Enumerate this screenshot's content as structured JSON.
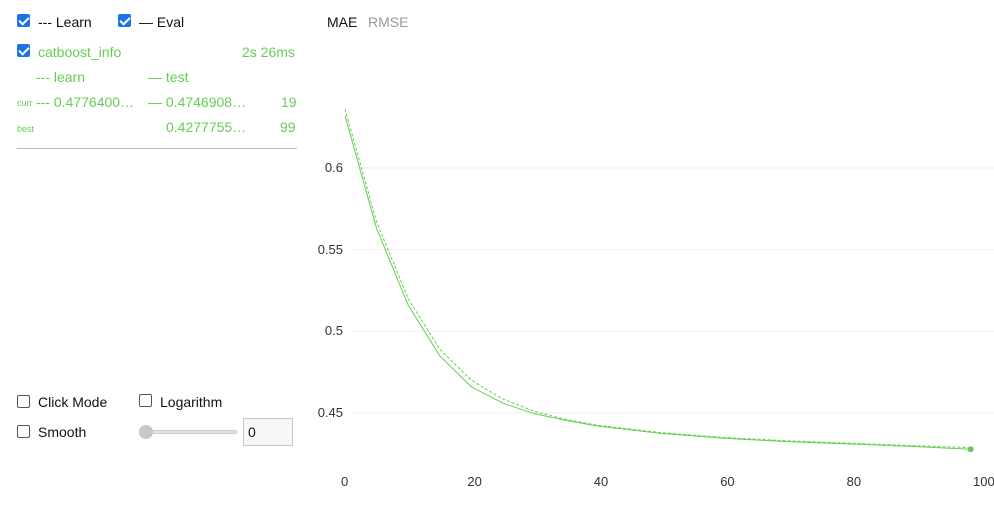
{
  "legend": {
    "learn_label": "--- Learn",
    "eval_label": "— Eval",
    "learn_checked": true,
    "eval_checked": true
  },
  "run": {
    "name": "catboost_info",
    "time": "2s 26ms",
    "checked": true,
    "learn_header": "--- learn",
    "test_header": "— test",
    "curr_label": "curr",
    "curr_learn": "--- 0.4776400…",
    "curr_test": "— 0.4746908…",
    "curr_iter": "19",
    "best_label": "best",
    "best_test": "0.4277755…",
    "best_iter": "99"
  },
  "controls": {
    "click_mode": "Click Mode",
    "logarithm": "Logarithm",
    "smooth": "Smooth",
    "smooth_value": "0",
    "smooth_level": 0
  },
  "tabs": {
    "mae": "MAE",
    "rmse": "RMSE",
    "active": "MAE"
  },
  "colors": {
    "series": "#66cc55",
    "checkbox": "#1a73e8",
    "inactive_tab": "#999999"
  },
  "chart_data": {
    "type": "line",
    "title": "",
    "xlabel": "",
    "ylabel": "",
    "xlim": [
      0,
      100
    ],
    "ylim": [
      0.425,
      0.64
    ],
    "x_ticks": [
      "0",
      "20",
      "40",
      "60",
      "80",
      "100"
    ],
    "y_ticks": [
      "0.45",
      "0.5",
      "0.55",
      "0.6"
    ],
    "grid": true,
    "series": [
      {
        "name": "learn",
        "style": "dashed",
        "x": [
          0,
          5,
          10,
          15,
          20,
          25,
          30,
          35,
          40,
          50,
          60,
          70,
          80,
          90,
          99
        ],
        "values": [
          0.636,
          0.567,
          0.52,
          0.489,
          0.47,
          0.4585,
          0.451,
          0.446,
          0.4425,
          0.438,
          0.435,
          0.433,
          0.4315,
          0.43,
          0.4288
        ]
      },
      {
        "name": "test",
        "style": "solid",
        "x": [
          0,
          5,
          10,
          15,
          20,
          25,
          30,
          35,
          40,
          50,
          60,
          70,
          80,
          90,
          99
        ],
        "values": [
          0.632,
          0.563,
          0.516,
          0.485,
          0.466,
          0.456,
          0.4495,
          0.4455,
          0.442,
          0.4375,
          0.4345,
          0.4325,
          0.431,
          0.4295,
          0.4278
        ]
      }
    ],
    "highlight_point": {
      "x": 99,
      "y": 0.4278
    }
  }
}
